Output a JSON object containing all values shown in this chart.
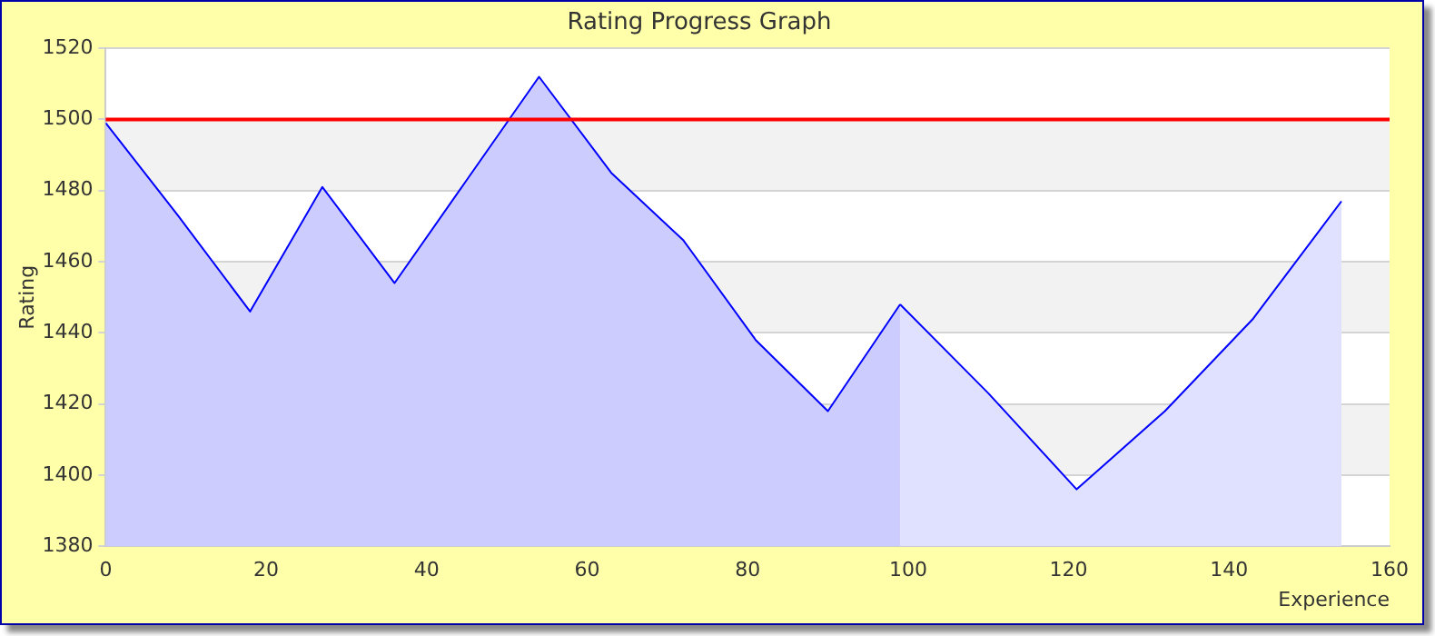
{
  "chart_data": {
    "type": "area",
    "title": "Rating Progress Graph",
    "xlabel": "Experience",
    "ylabel": "Rating",
    "xlim": [
      0,
      160
    ],
    "xticks": [
      0,
      20,
      40,
      60,
      80,
      100,
      120,
      140,
      160
    ],
    "ylim": [
      1380,
      1520
    ],
    "yticks": [
      1380,
      1400,
      1420,
      1440,
      1460,
      1480,
      1500,
      1520
    ],
    "grid": "y",
    "legend": false,
    "marker": "none",
    "line_style": "solid",
    "series": [
      {
        "color": "#ccccff",
        "x": [
          0,
          9,
          18,
          27,
          36,
          45,
          54,
          63,
          72,
          81,
          90,
          99
        ],
        "values": [
          1499,
          1473,
          1446,
          1481,
          1454,
          1483,
          1512,
          1485,
          1466,
          1438,
          1418,
          1448
        ]
      },
      {
        "color": "#e0e0ff",
        "x": [
          99,
          110,
          121,
          132,
          143,
          154
        ],
        "values": [
          1448,
          1423,
          1396,
          1418,
          1444,
          1477
        ]
      }
    ],
    "ref_lines": [
      {
        "axis": "y",
        "value": 1500,
        "color": "#ff0000",
        "line_style": "solid"
      }
    ]
  }
}
